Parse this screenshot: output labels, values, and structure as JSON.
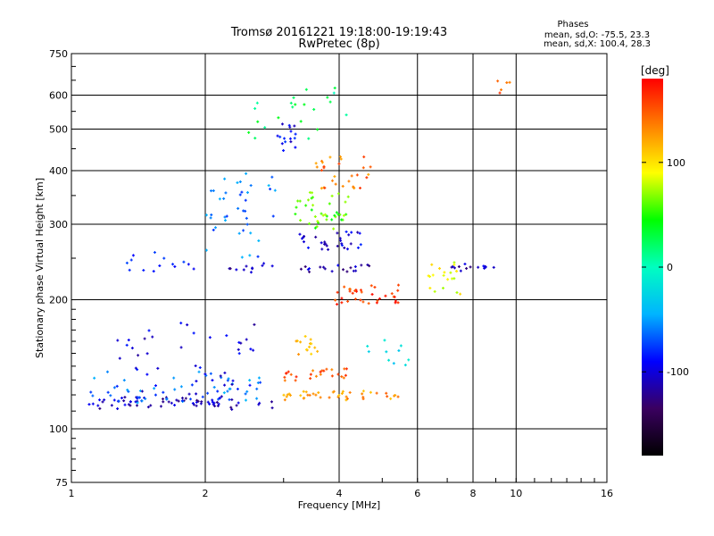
{
  "chart_data": {
    "type": "scatter",
    "title": "Tromsø 20161221 19:18:00-19:19:43",
    "subtitle": "RwPretec (8p)",
    "xlabel": "Frequency [MHz]",
    "ylabel": "Stationary phase Virtual Height [km]",
    "x_scale": "log",
    "y_scale": "log",
    "xlim": [
      1,
      16
    ],
    "ylim": [
      75,
      750
    ],
    "x_ticks": [
      "1",
      "2",
      "4",
      "6",
      "8",
      "10",
      "16"
    ],
    "y_ticks": [
      "75",
      "100",
      "200",
      "300",
      "400",
      "500",
      "600",
      "750"
    ],
    "x_tick_values": [
      1,
      2,
      4,
      6,
      8,
      10,
      16
    ],
    "y_tick_values": [
      75,
      100,
      200,
      300,
      400,
      500,
      600,
      750
    ],
    "grid": true,
    "color_quantity": "phase",
    "phase_stats": {
      "title": "Phases",
      "line1": "mean, sd,O: -75.5, 23.3",
      "line2": "mean, sd,X: 100.4, 28.3"
    },
    "colorbar": {
      "unit_label": "[deg]",
      "range": [
        -180,
        180
      ],
      "ticks": [
        "100",
        "0",
        "-100"
      ],
      "tick_values": [
        100,
        0,
        -100
      ],
      "colors": [
        "#000000",
        "#3a0060",
        "#0000ff",
        "#00b4ff",
        "#00ffc0",
        "#00ff00",
        "#ffff00",
        "#ff8000",
        "#ff0000"
      ]
    },
    "series": [
      {
        "name": "",
        "traces": [
          {
            "f0": 1.05,
            "f1": 2.9,
            "h0": 112,
            "h1": 118,
            "n": 70,
            "phase": -110
          },
          {
            "f0": 1.1,
            "f1": 2.7,
            "h0": 115,
            "h1": 135,
            "n": 55,
            "phase": -60
          },
          {
            "f0": 1.2,
            "f1": 2.6,
            "h0": 120,
            "h1": 175,
            "n": 45,
            "phase": -100
          },
          {
            "f0": 3.0,
            "f1": 5.5,
            "h0": 118,
            "h1": 122,
            "n": 40,
            "phase": 130
          },
          {
            "f0": 3.0,
            "f1": 4.2,
            "h0": 130,
            "h1": 138,
            "n": 25,
            "phase": 150
          },
          {
            "f0": 3.2,
            "f1": 3.6,
            "h0": 150,
            "h1": 165,
            "n": 14,
            "phase": 110
          },
          {
            "f0": 3.8,
            "f1": 5.5,
            "h0": 195,
            "h1": 215,
            "n": 35,
            "phase": 160
          },
          {
            "f0": 2.2,
            "f1": 5.0,
            "h0": 235,
            "h1": 240,
            "n": 30,
            "phase": -110
          },
          {
            "f0": 3.2,
            "f1": 4.5,
            "h0": 260,
            "h1": 290,
            "n": 30,
            "phase": -100
          },
          {
            "f0": 3.1,
            "f1": 4.2,
            "h0": 290,
            "h1": 360,
            "n": 40,
            "phase": 60
          },
          {
            "f0": 3.5,
            "f1": 4.8,
            "h0": 360,
            "h1": 430,
            "n": 30,
            "phase": 140
          },
          {
            "f0": 2.9,
            "f1": 3.2,
            "h0": 450,
            "h1": 520,
            "n": 16,
            "phase": -90
          },
          {
            "f0": 2.0,
            "f1": 2.9,
            "h0": 250,
            "h1": 400,
            "n": 40,
            "phase": -60
          },
          {
            "f0": 1.3,
            "f1": 1.9,
            "h0": 230,
            "h1": 255,
            "n": 14,
            "phase": -80
          },
          {
            "f0": 6.2,
            "f1": 7.5,
            "h0": 205,
            "h1": 250,
            "n": 20,
            "phase": 90
          },
          {
            "f0": 7.0,
            "f1": 9.0,
            "h0": 235,
            "h1": 240,
            "n": 14,
            "phase": -110
          },
          {
            "f0": 2.5,
            "f1": 4.5,
            "h0": 480,
            "h1": 620,
            "n": 22,
            "phase": 20
          },
          {
            "f0": 9.0,
            "f1": 9.8,
            "h0": 600,
            "h1": 650,
            "n": 5,
            "phase": 150
          },
          {
            "f0": 4.5,
            "f1": 5.8,
            "h0": 140,
            "h1": 160,
            "n": 10,
            "phase": -30
          }
        ]
      }
    ]
  }
}
